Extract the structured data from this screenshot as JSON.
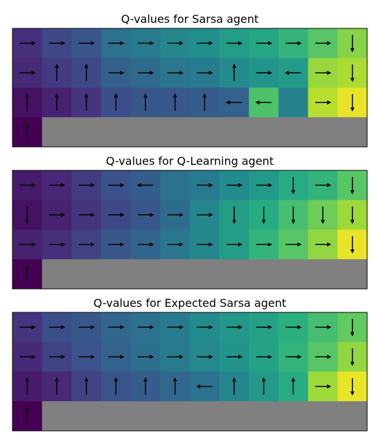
{
  "chart_data": [
    {
      "type": "heatmap",
      "title": "Q-values for Sarsa agent",
      "rows": 4,
      "cols": 12,
      "colormap": "viridis",
      "masked_color": "#808080",
      "masked_cells": "row 3, columns 1-11",
      "values": [
        [
          0.14,
          0.22,
          0.27,
          0.38,
          0.42,
          0.46,
          0.5,
          0.56,
          0.6,
          0.66,
          0.74,
          0.82
        ],
        [
          0.12,
          0.18,
          0.22,
          0.31,
          0.35,
          0.4,
          0.42,
          0.48,
          0.52,
          0.55,
          0.85,
          0.88
        ],
        [
          0.05,
          0.1,
          0.16,
          0.24,
          0.27,
          0.28,
          0.3,
          0.32,
          0.72,
          0.45,
          0.9,
          0.97
        ],
        [
          0.0,
          null,
          null,
          null,
          null,
          null,
          null,
          null,
          null,
          null,
          null,
          null
        ]
      ],
      "arrows": [
        [
          "R",
          "R",
          "R",
          "R",
          "R",
          "R",
          "R",
          "R",
          "R",
          "R",
          "R",
          "D"
        ],
        [
          "R",
          "U",
          "U",
          "R",
          "R",
          "R",
          "R",
          "U",
          "R",
          "L",
          "R",
          "D"
        ],
        [
          "U",
          "U",
          "U",
          "U",
          "U",
          "U",
          "U",
          "L",
          "L",
          "",
          "R",
          "D"
        ],
        [
          "U",
          "",
          "",
          "",
          "",
          "",
          "",
          "",
          "",
          "",
          "",
          ""
        ]
      ]
    },
    {
      "type": "heatmap",
      "title": "Q-values for Q-Learning agent",
      "rows": 4,
      "cols": 12,
      "colormap": "viridis",
      "masked_color": "#808080",
      "masked_cells": "row 3, columns 1-11",
      "values": [
        [
          0.08,
          0.12,
          0.18,
          0.25,
          0.3,
          0.38,
          0.42,
          0.48,
          0.54,
          0.62,
          0.66,
          0.74
        ],
        [
          0.05,
          0.1,
          0.16,
          0.22,
          0.28,
          0.36,
          0.46,
          0.56,
          0.62,
          0.7,
          0.78,
          0.86
        ],
        [
          0.1,
          0.14,
          0.2,
          0.28,
          0.33,
          0.4,
          0.46,
          0.56,
          0.66,
          0.74,
          0.84,
          0.97
        ],
        [
          0.0,
          null,
          null,
          null,
          null,
          null,
          null,
          null,
          null,
          null,
          null,
          null
        ]
      ],
      "arrows": [
        [
          "R",
          "R",
          "R",
          "R",
          "L",
          "",
          "R",
          "R",
          "R",
          "D",
          "R",
          "D"
        ],
        [
          "D",
          "R",
          "R",
          "R",
          "R",
          "R",
          "R",
          "D",
          "D",
          "D",
          "D",
          "D"
        ],
        [
          "R",
          "R",
          "R",
          "R",
          "R",
          "R",
          "R",
          "R",
          "R",
          "R",
          "R",
          "D"
        ],
        [
          "U",
          "",
          "",
          "",
          "",
          "",
          "",
          "",
          "",
          "",
          "",
          ""
        ]
      ]
    },
    {
      "type": "heatmap",
      "title": "Q-values for Expected Sarsa agent",
      "rows": 4,
      "cols": 12,
      "colormap": "viridis",
      "masked_color": "#808080",
      "masked_cells": "row 3, columns 1-11",
      "values": [
        [
          0.16,
          0.24,
          0.28,
          0.34,
          0.38,
          0.42,
          0.48,
          0.53,
          0.58,
          0.64,
          0.7,
          0.76
        ],
        [
          0.12,
          0.2,
          0.26,
          0.32,
          0.37,
          0.42,
          0.47,
          0.52,
          0.58,
          0.66,
          0.74,
          0.84
        ],
        [
          0.08,
          0.12,
          0.2,
          0.26,
          0.3,
          0.34,
          0.38,
          0.46,
          0.54,
          0.62,
          0.86,
          0.97
        ],
        [
          0.0,
          null,
          null,
          null,
          null,
          null,
          null,
          null,
          null,
          null,
          null,
          null
        ]
      ],
      "arrows": [
        [
          "R",
          "R",
          "R",
          "R",
          "R",
          "R",
          "R",
          "R",
          "R",
          "R",
          "R",
          "D"
        ],
        [
          "R",
          "R",
          "R",
          "R",
          "R",
          "R",
          "R",
          "R",
          "R",
          "R",
          "R",
          "D"
        ],
        [
          "U",
          "U",
          "U",
          "U",
          "U",
          "U",
          "L",
          "U",
          "U",
          "U",
          "R",
          "D"
        ],
        [
          "U",
          "",
          "",
          "",
          "",
          "",
          "",
          "",
          "",
          "",
          "",
          ""
        ]
      ]
    }
  ]
}
